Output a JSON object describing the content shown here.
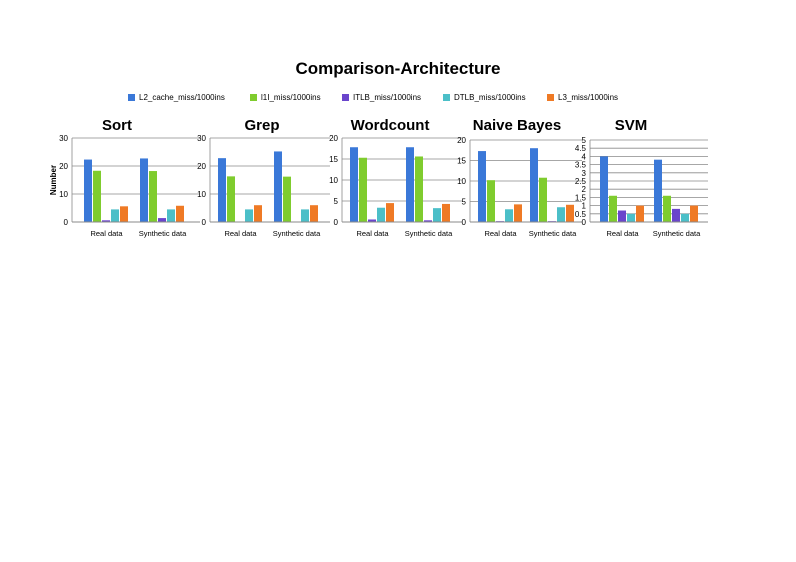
{
  "title": "Comparison-Architecture",
  "legend": [
    {
      "name": "L2_cache_miss/1000ins",
      "color": "#4F81BD"
    },
    {
      "name": "l1I_miss/1000ins",
      "color": "#9BBB59"
    },
    {
      "name": "ITLB_miss/1000ins",
      "color": "#6F4FBF"
    },
    {
      "name": "DTLB_miss/1000ins",
      "color": "#4BACC6"
    },
    {
      "name": "L3_miss/1000ins",
      "color": "#F79646"
    }
  ],
  "colors": [
    "#3A78D8",
    "#7FCC2E",
    "#6A45CC",
    "#4BBFC8",
    "#EF7A25"
  ],
  "chart_data": [
    {
      "type": "bar",
      "title": "Sort",
      "ylabel": "Number",
      "categories": [
        "Real data",
        "Synthetic data"
      ],
      "ylim": [
        0,
        30
      ],
      "yticks": [
        0,
        10,
        20,
        30
      ],
      "series": [
        {
          "name": "L2_cache_miss/1000ins",
          "values": [
            22.3,
            22.7
          ]
        },
        {
          "name": "l1I_miss/1000ins",
          "values": [
            18.3,
            18.2
          ]
        },
        {
          "name": "ITLB_miss/1000ins",
          "values": [
            0.6,
            1.4
          ]
        },
        {
          "name": "DTLB_miss/1000ins",
          "values": [
            4.5,
            4.5
          ]
        },
        {
          "name": "L3_miss/1000ins",
          "values": [
            5.6,
            5.8
          ]
        }
      ]
    },
    {
      "type": "bar",
      "title": "Grep",
      "ylabel": "",
      "categories": [
        "Real data",
        "Synthetic data"
      ],
      "ylim": [
        0,
        30
      ],
      "yticks": [
        0,
        10,
        20,
        30
      ],
      "series": [
        {
          "name": "L2_cache_miss/1000ins",
          "values": [
            22.8,
            25.2
          ]
        },
        {
          "name": "l1I_miss/1000ins",
          "values": [
            16.3,
            16.2
          ]
        },
        {
          "name": "ITLB_miss/1000ins",
          "values": [
            0.1,
            0.1
          ]
        },
        {
          "name": "DTLB_miss/1000ins",
          "values": [
            4.5,
            4.5
          ]
        },
        {
          "name": "L3_miss/1000ins",
          "values": [
            6.0,
            6.0
          ]
        }
      ]
    },
    {
      "type": "bar",
      "title": "Wordcount",
      "ylabel": "",
      "categories": [
        "Real data",
        "Synthetic data"
      ],
      "ylim": [
        0,
        20
      ],
      "yticks": [
        0,
        5,
        10,
        15,
        20
      ],
      "series": [
        {
          "name": "L2_cache_miss/1000ins",
          "values": [
            17.8,
            17.8
          ]
        },
        {
          "name": "l1I_miss/1000ins",
          "values": [
            15.3,
            15.6
          ]
        },
        {
          "name": "ITLB_miss/1000ins",
          "values": [
            0.6,
            0.4
          ]
        },
        {
          "name": "DTLB_miss/1000ins",
          "values": [
            3.4,
            3.3
          ]
        },
        {
          "name": "L3_miss/1000ins",
          "values": [
            4.5,
            4.3
          ]
        }
      ]
    },
    {
      "type": "bar",
      "title": "Naive Bayes",
      "ylabel": "",
      "categories": [
        "Real data",
        "Synthetic data"
      ],
      "ylim": [
        0,
        20
      ],
      "yticks": [
        0,
        5,
        10,
        15,
        20
      ],
      "series": [
        {
          "name": "L2_cache_miss/1000ins",
          "values": [
            17.3,
            18.0
          ]
        },
        {
          "name": "l1I_miss/1000ins",
          "values": [
            10.2,
            10.8
          ]
        },
        {
          "name": "ITLB_miss/1000ins",
          "values": [
            0.2,
            0.2
          ]
        },
        {
          "name": "DTLB_miss/1000ins",
          "values": [
            3.1,
            3.6
          ]
        },
        {
          "name": "L3_miss/1000ins",
          "values": [
            4.3,
            4.2
          ]
        }
      ]
    },
    {
      "type": "bar",
      "title": "SVM",
      "ylabel": "",
      "categories": [
        "Real data",
        "Synthetic data"
      ],
      "ylim": [
        0,
        5
      ],
      "yticks": [
        0,
        0.5,
        1,
        1.5,
        2,
        2.5,
        3,
        3.5,
        4,
        4.5,
        5
      ],
      "series": [
        {
          "name": "L2_cache_miss/1000ins",
          "values": [
            4.0,
            3.8
          ]
        },
        {
          "name": "l1I_miss/1000ins",
          "values": [
            1.6,
            1.6
          ]
        },
        {
          "name": "ITLB_miss/1000ins",
          "values": [
            0.7,
            0.8
          ]
        },
        {
          "name": "DTLB_miss/1000ins",
          "values": [
            0.5,
            0.5
          ]
        },
        {
          "name": "L3_miss/1000ins",
          "values": [
            1.0,
            1.0
          ]
        }
      ]
    }
  ]
}
